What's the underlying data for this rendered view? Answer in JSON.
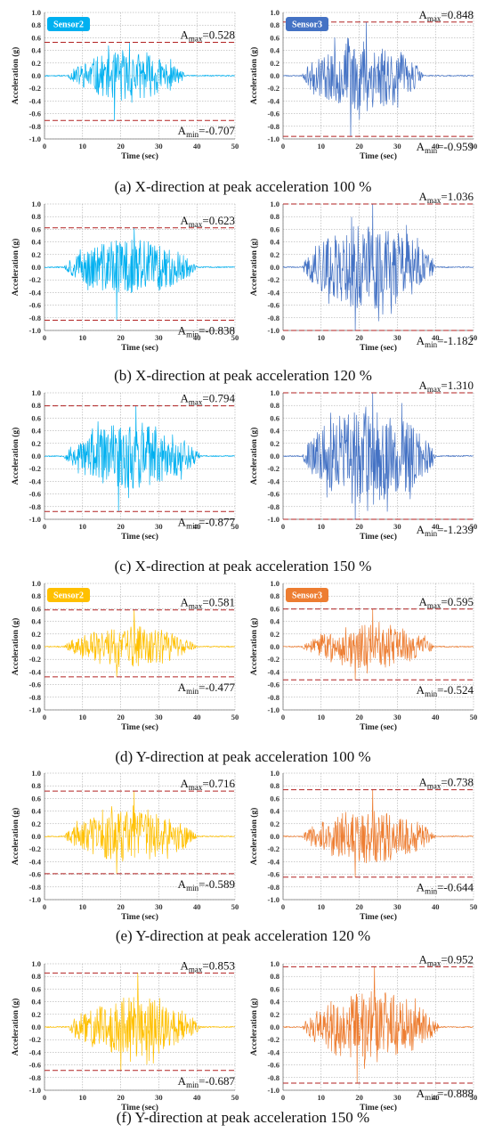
{
  "chart_data": [
    {
      "type": "line",
      "group": "a",
      "side": "left",
      "caption": "(a) X-direction at peak acceleration 100 %",
      "badge": "Sensor2",
      "color": "#00b0f0",
      "xlabel": "Time (sec)",
      "ylabel": "Acceleration (g)",
      "xlim": [
        0,
        50
      ],
      "ylim": [
        -1.0,
        1.0
      ],
      "xticks": [
        "0",
        "10",
        "20",
        "30",
        "40",
        "50"
      ],
      "yticks": [
        "1.0",
        "0.8",
        "0.6",
        "0.4",
        "0.2",
        "0.0",
        "-0.2",
        "-0.4",
        "-0.6",
        "-0.8",
        "-1.0"
      ],
      "amax": 0.528,
      "amin": -0.707,
      "amax_label": "=0.528",
      "amin_label": "=-0.707",
      "signal_start": 8,
      "signal_end": 34,
      "seed": 11
    },
    {
      "type": "line",
      "group": "a",
      "side": "right",
      "caption": "",
      "badge": "Sensor3",
      "color": "#4472c4",
      "xlabel": "Time (sec)",
      "ylabel": "Acceleration (g)",
      "xlim": [
        0,
        50
      ],
      "ylim": [
        -1.0,
        1.0
      ],
      "xticks": [
        "0",
        "10",
        "20",
        "30",
        "40",
        "50"
      ],
      "yticks": [
        "1.0",
        "0.8",
        "0.6",
        "0.4",
        "0.2",
        "0.0",
        "-0.2",
        "-0.4",
        "-0.6",
        "-0.8",
        "-1.0"
      ],
      "amax": 0.848,
      "amin": -0.959,
      "amax_label": "=0.848",
      "amin_label": "=-0.959",
      "signal_start": 7,
      "signal_end": 34,
      "seed": 23
    },
    {
      "type": "line",
      "group": "b",
      "side": "left",
      "caption": "(b) X-direction at peak acceleration 120 %",
      "badge": "",
      "color": "#00b0f0",
      "xlabel": "Time (sec)",
      "ylabel": "Acceleration (g)",
      "xlim": [
        0,
        50
      ],
      "ylim": [
        -1.0,
        1.0
      ],
      "xticks": [
        "0",
        "10",
        "20",
        "30",
        "40",
        "50"
      ],
      "yticks": [
        "1.0",
        "0.8",
        "0.6",
        "0.4",
        "0.2",
        "0.0",
        "-0.2",
        "-0.4",
        "-0.6",
        "-0.8",
        "-1.0"
      ],
      "amax": 0.623,
      "amin": -0.838,
      "amax_label": "=0.623",
      "amin_label": "=-0.838",
      "signal_start": 7,
      "signal_end": 37,
      "seed": 37
    },
    {
      "type": "line",
      "group": "b",
      "side": "right",
      "caption": "",
      "badge": "",
      "color": "#4472c4",
      "xlabel": "Time (sec)",
      "ylabel": "Acceleration (g)",
      "xlim": [
        0,
        50
      ],
      "ylim": [
        -1.0,
        1.0
      ],
      "xticks": [
        "0",
        "10",
        "20",
        "30",
        "40",
        "50"
      ],
      "yticks": [
        "1.0",
        "0.8",
        "0.6",
        "0.4",
        "0.2",
        "0.0",
        "-0.2",
        "-0.4",
        "-0.6",
        "-0.8",
        "-1.0"
      ],
      "amax": 1.036,
      "amin": -1.182,
      "amax_label": "=1.036",
      "amin_label": "=-1.182",
      "signal_start": 7,
      "signal_end": 37,
      "seed": 41
    },
    {
      "type": "line",
      "group": "c",
      "side": "left",
      "caption": "(c) X-direction at peak acceleration 150 %",
      "badge": "",
      "color": "#00b0f0",
      "xlabel": "Time (sec)",
      "ylabel": "Acceleration (g)",
      "xlim": [
        0,
        50
      ],
      "ylim": [
        -1.0,
        1.0
      ],
      "xticks": [
        "0",
        "10",
        "20",
        "30",
        "40",
        "50"
      ],
      "yticks": [
        "1.0",
        "0.8",
        "0.6",
        "0.4",
        "0.2",
        "0.0",
        "-0.2",
        "-0.4",
        "-0.6",
        "-0.8",
        "-1.0"
      ],
      "amax": 0.794,
      "amin": -0.877,
      "amax_label": "=0.794",
      "amin_label": "=-0.877",
      "signal_start": 7,
      "signal_end": 38,
      "seed": 53
    },
    {
      "type": "line",
      "group": "c",
      "side": "right",
      "caption": "",
      "badge": "",
      "color": "#4472c4",
      "xlabel": "Time (sec)",
      "ylabel": "Acceleration (g)",
      "xlim": [
        0,
        50
      ],
      "ylim": [
        -1.0,
        1.0
      ],
      "xticks": [
        "0",
        "10",
        "20",
        "30",
        "40",
        "50"
      ],
      "yticks": [
        "1.0",
        "0.8",
        "0.6",
        "0.4",
        "0.2",
        "0.0",
        "-0.2",
        "-0.4",
        "-0.6",
        "-0.8",
        "-1.0"
      ],
      "amax": 1.31,
      "amin": -1.239,
      "amax_label": "=1.310",
      "amin_label": "=-1.239",
      "signal_start": 7,
      "signal_end": 37,
      "seed": 67
    },
    {
      "type": "line",
      "group": "d",
      "side": "left",
      "caption": "(d) Y-direction at peak acceleration 100 %",
      "badge": "Sensor2",
      "color": "#ffc000",
      "xlabel": "Time (sec)",
      "ylabel": "Acceleration (g)",
      "xlim": [
        0,
        50
      ],
      "ylim": [
        -1.0,
        1.0
      ],
      "xticks": [
        "0",
        "10",
        "20",
        "30",
        "40",
        "50"
      ],
      "yticks": [
        "1.0",
        "0.8",
        "0.6",
        "0.4",
        "0.2",
        "0.0",
        "-0.2",
        "-0.4",
        "-0.6",
        "-0.8",
        "-1.0"
      ],
      "amax": 0.581,
      "amin": -0.477,
      "amax_label": "=0.581",
      "amin_label": "=-0.477",
      "signal_start": 7,
      "signal_end": 37,
      "seed": 71
    },
    {
      "type": "line",
      "group": "d",
      "side": "right",
      "caption": "",
      "badge": "Sensor3",
      "color": "#ed7d31",
      "xlabel": "Time (sec)",
      "ylabel": "Acceleration (g)",
      "xlim": [
        0,
        50
      ],
      "ylim": [
        -1.0,
        1.0
      ],
      "xticks": [
        "0",
        "10",
        "20",
        "30",
        "40",
        "50"
      ],
      "yticks": [
        "1.0",
        "0.8",
        "0.6",
        "0.4",
        "0.2",
        "0.0",
        "-0.2",
        "-0.4",
        "-0.6",
        "-0.8",
        "-1.0"
      ],
      "amax": 0.595,
      "amin": -0.524,
      "amax_label": "=0.595",
      "amin_label": "=-0.524",
      "signal_start": 7,
      "signal_end": 37,
      "seed": 83
    },
    {
      "type": "line",
      "group": "e",
      "side": "left",
      "caption": "(e) Y-direction at peak acceleration 120 %",
      "badge": "",
      "color": "#ffc000",
      "xlabel": "Time (sec)",
      "ylabel": "Acceleration (g)",
      "xlim": [
        0,
        50
      ],
      "ylim": [
        -1.0,
        1.0
      ],
      "xticks": [
        "0",
        "10",
        "20",
        "30",
        "40",
        "50"
      ],
      "yticks": [
        "1.0",
        "0.8",
        "0.6",
        "0.4",
        "0.2",
        "0.0",
        "-0.2",
        "-0.4",
        "-0.6",
        "-0.8",
        "-1.0"
      ],
      "amax": 0.716,
      "amin": -0.589,
      "amax_label": "=0.716",
      "amin_label": "=-0.589",
      "signal_start": 7,
      "signal_end": 37,
      "seed": 97
    },
    {
      "type": "line",
      "group": "e",
      "side": "right",
      "caption": "",
      "badge": "",
      "color": "#ed7d31",
      "xlabel": "Time (sec)",
      "ylabel": "Acceleration (g)",
      "xlim": [
        0,
        50
      ],
      "ylim": [
        -1.0,
        1.0
      ],
      "xticks": [
        "0",
        "10",
        "20",
        "30",
        "40",
        "50"
      ],
      "yticks": [
        "1.0",
        "0.8",
        "0.6",
        "0.4",
        "0.2",
        "0.0",
        "-0.2",
        "-0.4",
        "-0.6",
        "-0.8",
        "-1.0"
      ],
      "amax": 0.738,
      "amin": -0.644,
      "amax_label": "=0.738",
      "amin_label": "=-0.644",
      "signal_start": 7,
      "signal_end": 37,
      "seed": 101
    },
    {
      "type": "line",
      "group": "f",
      "side": "left",
      "caption": "(f) Y-direction at peak acceleration 150 %",
      "badge": "",
      "color": "#ffc000",
      "xlabel": "Time (sec)",
      "ylabel": "Acceleration (g)",
      "xlim": [
        0,
        50
      ],
      "ylim": [
        -1.0,
        1.0
      ],
      "xticks": [
        "0",
        "10",
        "20",
        "30",
        "40",
        "50"
      ],
      "yticks": [
        "1.0",
        "0.8",
        "0.6",
        "0.4",
        "0.2",
        "0.0",
        "-0.2",
        "-0.4",
        "-0.6",
        "-0.8",
        "-1.0"
      ],
      "amax": 0.853,
      "amin": -0.687,
      "amax_label": "=0.853",
      "amin_label": "=-0.687",
      "signal_start": 8,
      "signal_end": 38,
      "seed": 113
    },
    {
      "type": "line",
      "group": "f",
      "side": "right",
      "caption": "",
      "badge": "",
      "color": "#ed7d31",
      "xlabel": "Time (sec)",
      "ylabel": "Acceleration (g)",
      "xlim": [
        0,
        50
      ],
      "ylim": [
        -1.0,
        1.0
      ],
      "xticks": [
        "0",
        "10",
        "20",
        "30",
        "40",
        "50"
      ],
      "yticks": [
        "1.0",
        "0.8",
        "0.6",
        "0.4",
        "0.2",
        "0.0",
        "-0.2",
        "-0.4",
        "-0.6",
        "-0.8",
        "-1.0"
      ],
      "amax": 0.952,
      "amin": -0.888,
      "amax_label": "=0.952",
      "amin_label": "=-0.888",
      "signal_start": 7,
      "signal_end": 38,
      "seed": 127
    }
  ],
  "colors": {
    "threshold_line": "#b22222",
    "grid": "#9a9a9a",
    "axis": "#777777"
  }
}
